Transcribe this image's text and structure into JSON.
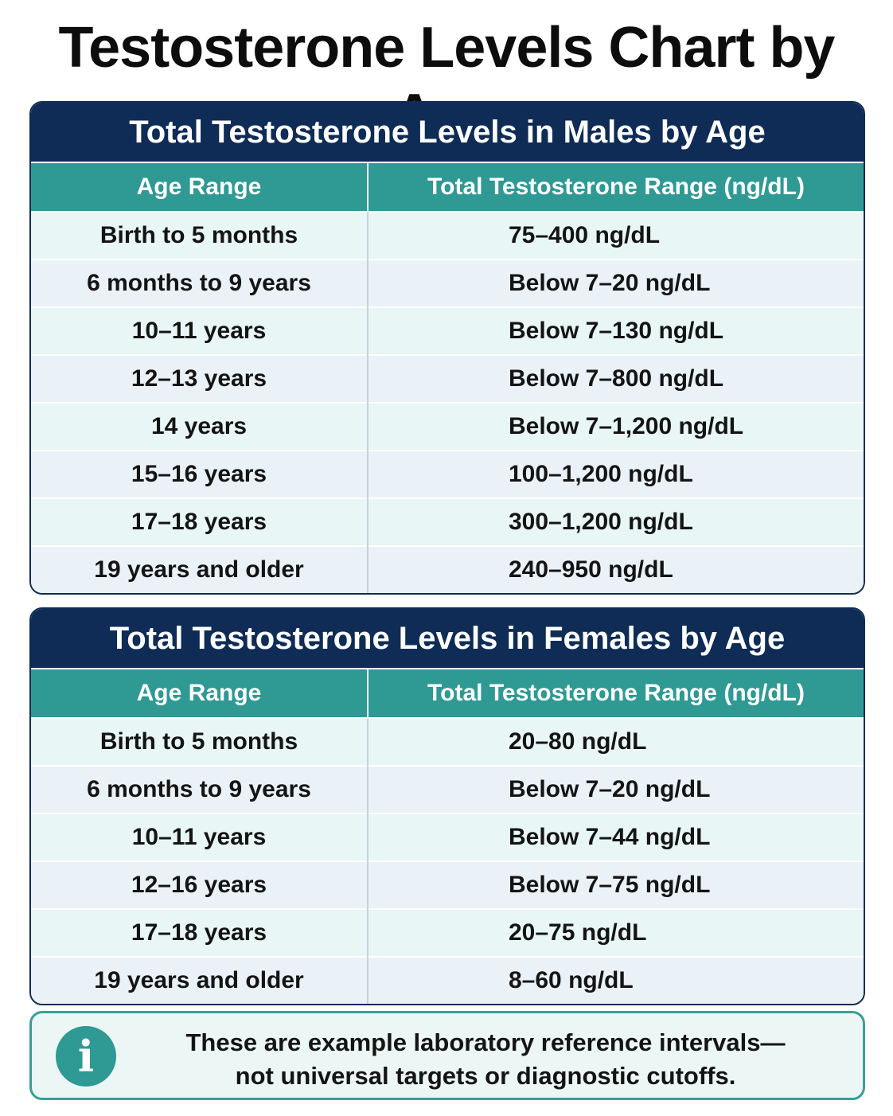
{
  "title": "Testosterone Levels Chart by Age",
  "male_table": {
    "title": "Total Testosterone Levels in Males by Age",
    "headers": [
      "Age Range",
      "Total Testosterone Range (ng/dL)"
    ],
    "rows": [
      {
        "age": "Birth to 5 months",
        "range": "75–400 ng/dL"
      },
      {
        "age": "6 months to 9 years",
        "range": "Below 7–20 ng/dL"
      },
      {
        "age": "10–11 years",
        "range": "Below 7–130 ng/dL"
      },
      {
        "age": "12–13 years",
        "range": "Below 7–800 ng/dL"
      },
      {
        "age": "14 years",
        "range": "Below 7–1,200 ng/dL"
      },
      {
        "age": "15–16 years",
        "range": "100–1,200 ng/dL"
      },
      {
        "age": "17–18 years",
        "range": "300–1,200 ng/dL"
      },
      {
        "age": "19 years and older",
        "range": "240–950 ng/dL"
      }
    ]
  },
  "female_table": {
    "title": "Total Testosterone Levels in Females by Age",
    "headers": [
      "Age Range",
      "Total Testosterone Range (ng/dL)"
    ],
    "rows": [
      {
        "age": "Birth to 5 months",
        "range": "20–80 ng/dL"
      },
      {
        "age": "6 months to 9 years",
        "range": "Below 7–20 ng/dL"
      },
      {
        "age": "10–11 years",
        "range": "Below 7–44 ng/dL"
      },
      {
        "age": "12–16 years",
        "range": "Below 7–75 ng/dL"
      },
      {
        "age": "17–18 years",
        "range": "20–75 ng/dL"
      },
      {
        "age": "19 years and older",
        "range": "8–60 ng/dL"
      }
    ]
  },
  "note": {
    "icon": "info-icon",
    "glyph": "i",
    "line1": "These are example laboratory reference intervals—",
    "line2": "not universal targets or diagnostic cutoffs."
  },
  "colors": {
    "navy": "#0e2c55",
    "teal": "#2f9994",
    "row_light": "#e8f6f5"
  }
}
